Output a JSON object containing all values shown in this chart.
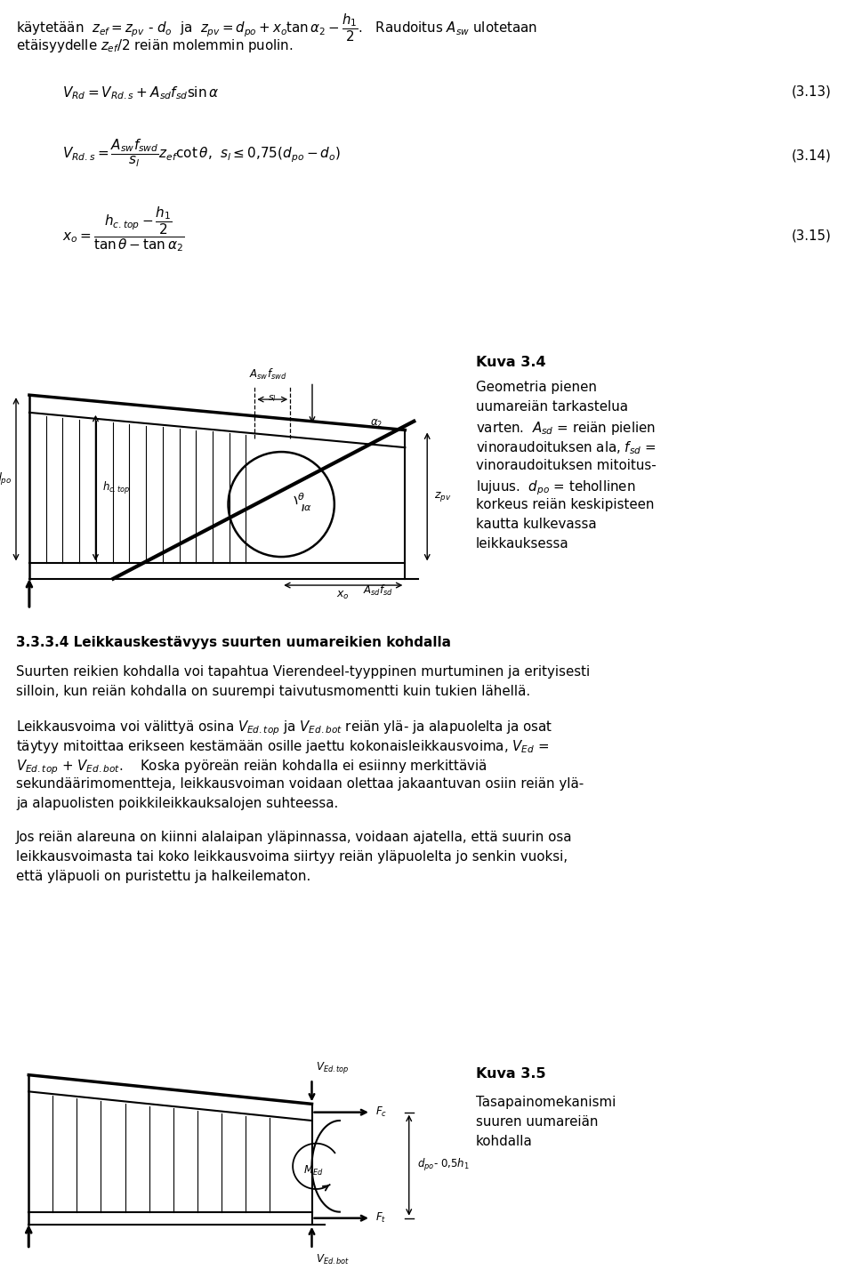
{
  "bg_color": "#ffffff",
  "page_width": 9.6,
  "page_height": 14.46,
  "dpi": 100,
  "line1": "käytetään  $z_{ef} = z_{pv}$ - $d_o$  ja  $z_{pv} = d_{po} + x_o\\tan\\alpha_2 - \\dfrac{h_1}{2}$.   Raudoitus $A_{sw}$ ulotetaan",
  "line2": "etäisyydelle $z_{ef}$/2 reiän molemmin puolin.",
  "eq313_lhs": "$V_{Rd} = V_{Rd.s} + A_{sd}f_{sd} \\sin\\alpha$",
  "eq313_num": "(3.13)",
  "eq314_lhs": "$V_{Rd.s} = \\dfrac{A_{sw}f_{swd}}{s_l} z_{ef} \\cot\\theta$,  $s_l \\leq 0{,}75(d_{po} - d_o)$",
  "eq314_num": "(3.14)",
  "eq315_lhs": "$x_o = \\dfrac{h_{c.top} - \\dfrac{h_1}{2}}{\\tan\\theta - \\tan\\alpha_2}$",
  "eq315_num": "(3.15)",
  "kuva34_title": "Kuva 3.4",
  "kuva34_text1": "Geometria pienen",
  "kuva34_text2": "uumareiän tarkastelua",
  "kuva34_text3": "varten.  $A_{sd}$ = reiän pielien",
  "kuva34_text4": "vinoraudoituksen ala, $f_{sd}$ =",
  "kuva34_text5": "vinoraudoituksen mitoitus-",
  "kuva34_text6": "lujuus.  $d_{po}$ = tehollinen",
  "kuva34_text7": "korkeus reiän keskipisteen",
  "kuva34_text8": "kautta kulkevassa",
  "kuva34_text9": "leikkauksessa",
  "section_title": "3.3.3.4 Leikkauskestävyys suurten uumareikien kohdalla",
  "para1a": "Suurten reikien kohdalla voi tapahtua Vierendeel-tyyppinen murtuminen ja erityisesti",
  "para1b": "silloin, kun reiän kohdalla on suurempi taivutusmomentti kuin tukien lähellä.",
  "para2a": "Leikkausvoima voi välittyä osina $V_{Ed.top}$ ja $V_{Ed.bot}$ reiän ylä- ja alapuolelta ja osat",
  "para2b": "täytyy mitoittaa erikseen kestämään osille jaettu kokonaisleikkausvoima, $V_{Ed}$ =",
  "para2c": "$V_{Ed.top}$ + $V_{Ed.bot}$.    Koska pyöreän reiän kohdalla ei esiinny merkittäviä",
  "para2d": "sekundäärimomentteja, leikkausvoiman voidaan olettaa jakaantuvan osiin reiän ylä-",
  "para2e": "ja alapuolisten poikkileikkauksalojen suhteessa.",
  "para3a": "Jos reiän alareuna on kiinni alalaipan yläpinnassa, voidaan ajatella, että suurin osa",
  "para3b": "leikkausvoimasta tai koko leikkausvoima siirtyy reiän yläpuolelta jo senkin vuoksi,",
  "para3c": "että yläpuoli on puristettu ja halkeilematon.",
  "kuva35_title": "Kuva 3.5",
  "kuva35_text1": "Tasapainomekanismi",
  "kuva35_text2": "suuren uumareiän",
  "kuva35_text3": "kohdalla"
}
